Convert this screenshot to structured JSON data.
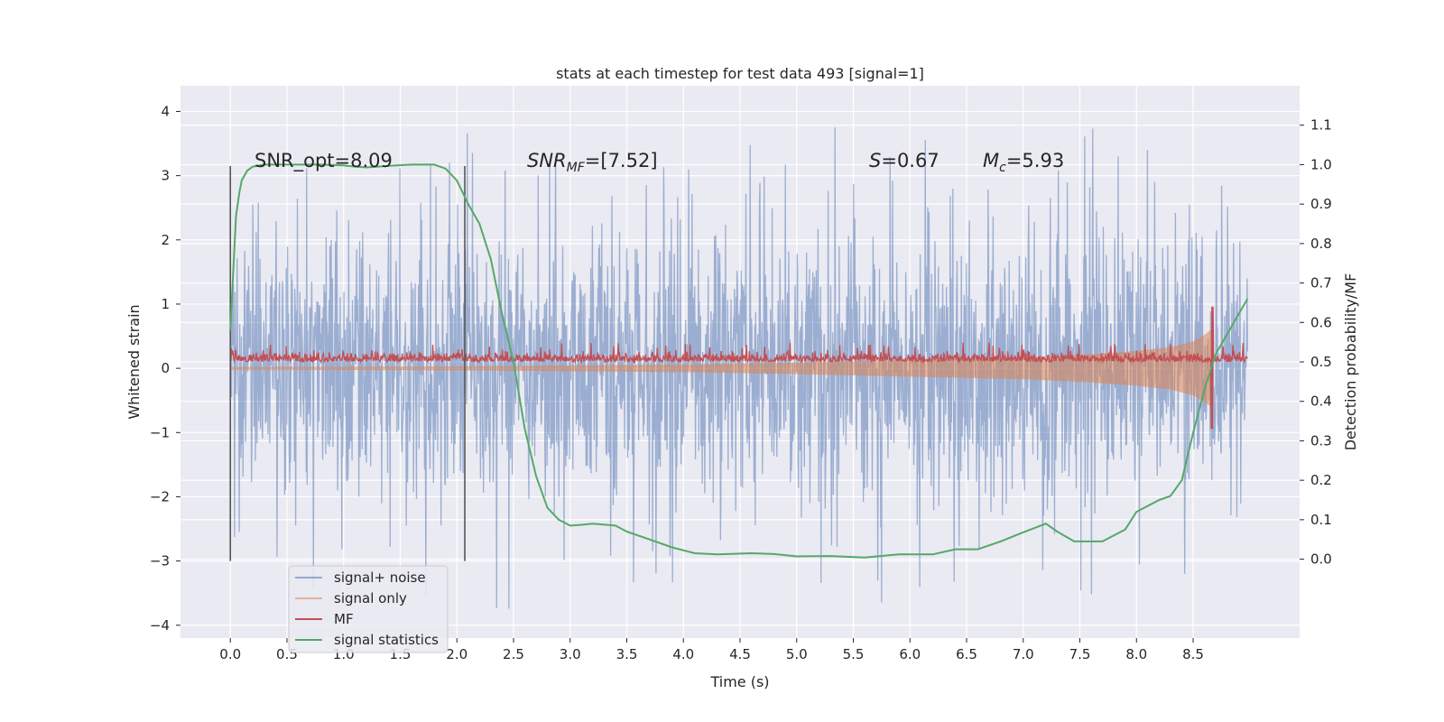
{
  "chart_data": {
    "type": "line",
    "title": "stats at each timestep for test data 493 [signal=1]",
    "xlabel": "Time (s)",
    "ylabel_left": "Whitened strain",
    "ylabel_right": "Detection probability/MF",
    "xlim": [
      -0.44,
      9.44
    ],
    "ylim_left": [
      -4.2,
      4.4
    ],
    "ylim_right": [
      -0.2,
      1.2
    ],
    "x_ticks": [
      "0.0",
      "0.5",
      "1.0",
      "1.5",
      "2.0",
      "2.5",
      "3.0",
      "3.5",
      "4.0",
      "4.5",
      "5.0",
      "5.5",
      "6.0",
      "6.5",
      "7.0",
      "7.5",
      "8.0",
      "8.5"
    ],
    "y_ticks_left": [
      "4",
      "3",
      "2",
      "1",
      "0",
      "−1",
      "−2",
      "−3",
      "−4"
    ],
    "y_ticks_right": [
      "1.1",
      "1.0",
      "0.9",
      "0.8",
      "0.7",
      "0.6",
      "0.5",
      "0.4",
      "0.3",
      "0.2",
      "0.1",
      "0.0"
    ],
    "grid": true,
    "background": "#eaeaf2",
    "vertical_markers_s": [
      0.0,
      2.07
    ],
    "annotations": {
      "snr_opt": "SNR_opt=8.09",
      "snr_mf_main": "SNR",
      "snr_mf_sub": "MF",
      "snr_mf_rest": "=[7.52]",
      "s_main": "S",
      "s_rest": "=0.67",
      "mc_main": "M",
      "mc_sub": "c",
      "mc_rest": "=5.93"
    },
    "legend_position": "lower-left",
    "series": [
      {
        "name": "signal+ noise",
        "axis": "left",
        "color": "#4c72b0",
        "x_range": [
          0.0,
          8.98
        ],
        "typical_abs_max": 1.3,
        "peak_max": 4.0,
        "peak_min": -3.8
      },
      {
        "name": "signal only",
        "axis": "left",
        "color": "#dd8452",
        "x_range": [
          0.0,
          8.67
        ],
        "envelope": [
          [
            0.0,
            0.02
          ],
          [
            2.0,
            0.03
          ],
          [
            4.0,
            0.06
          ],
          [
            5.0,
            0.09
          ],
          [
            6.0,
            0.13
          ],
          [
            7.0,
            0.17
          ],
          [
            7.5,
            0.21
          ],
          [
            8.0,
            0.27
          ],
          [
            8.3,
            0.33
          ],
          [
            8.5,
            0.42
          ],
          [
            8.6,
            0.52
          ],
          [
            8.67,
            0.62
          ]
        ]
      },
      {
        "name": "MF",
        "axis": "right",
        "color": "#c44e52",
        "x_range": [
          0.0,
          8.98
        ],
        "base": 0.5,
        "spike_x": 8.67,
        "spike_max": 0.64,
        "spike_min": 0.33
      },
      {
        "name": "signal statistics",
        "axis": "right",
        "color": "#55a868",
        "x": [
          0.0,
          0.05,
          0.08,
          0.1,
          0.15,
          0.2,
          0.3,
          0.5,
          0.8,
          1.0,
          1.1,
          1.2,
          1.4,
          1.6,
          1.8,
          1.9,
          2.0,
          2.1,
          2.2,
          2.3,
          2.4,
          2.5,
          2.6,
          2.7,
          2.8,
          2.9,
          3.0,
          3.1,
          3.2,
          3.4,
          3.5,
          3.7,
          3.9,
          4.1,
          4.3,
          4.6,
          4.8,
          5.0,
          5.3,
          5.6,
          5.9,
          6.2,
          6.4,
          6.6,
          6.8,
          7.0,
          7.2,
          7.3,
          7.45,
          7.7,
          7.9,
          8.0,
          8.2,
          8.3,
          8.4,
          8.5,
          8.6,
          8.7,
          8.8,
          8.9,
          8.98
        ],
        "y": [
          0.58,
          0.87,
          0.93,
          0.96,
          0.985,
          0.995,
          1.0,
          1.0,
          1.0,
          0.998,
          0.995,
          0.993,
          0.997,
          1.0,
          1.0,
          0.99,
          0.96,
          0.9,
          0.85,
          0.76,
          0.62,
          0.5,
          0.33,
          0.21,
          0.13,
          0.1,
          0.085,
          0.087,
          0.09,
          0.085,
          0.07,
          0.05,
          0.03,
          0.015,
          0.012,
          0.015,
          0.013,
          0.007,
          0.008,
          0.004,
          0.012,
          0.012,
          0.025,
          0.025,
          0.045,
          0.068,
          0.09,
          0.07,
          0.045,
          0.045,
          0.075,
          0.12,
          0.15,
          0.16,
          0.2,
          0.32,
          0.43,
          0.52,
          0.57,
          0.62,
          0.66
        ]
      }
    ]
  }
}
